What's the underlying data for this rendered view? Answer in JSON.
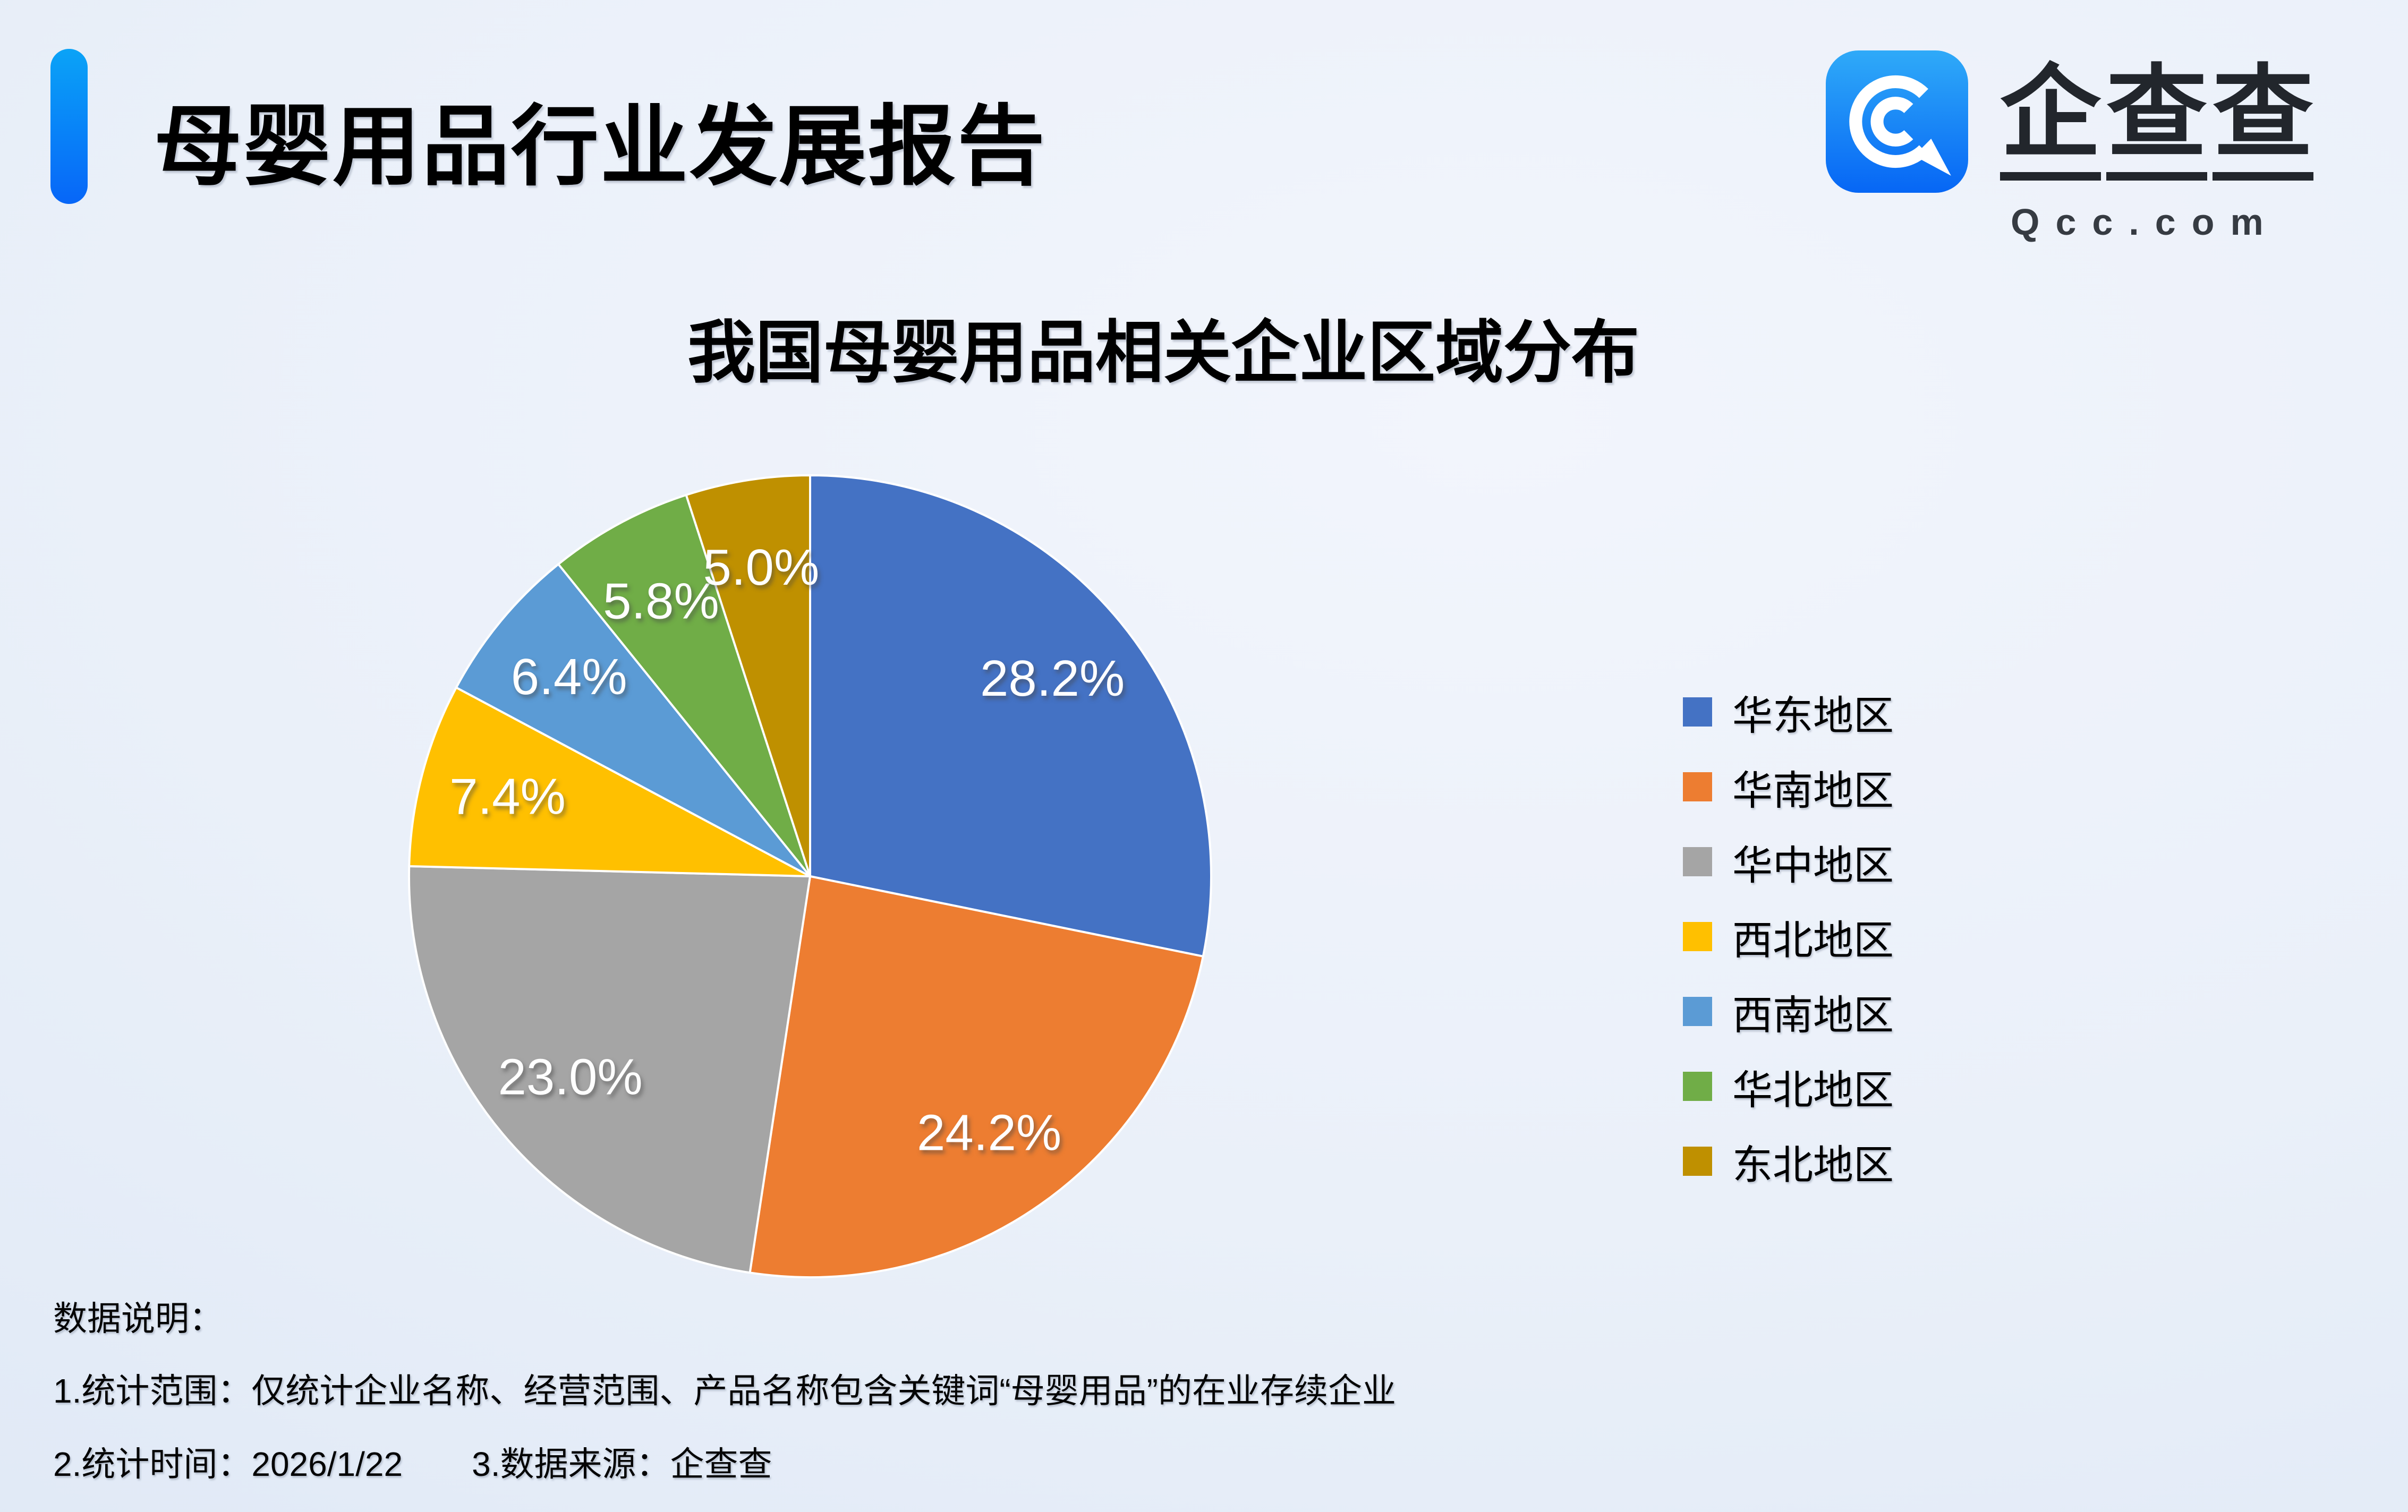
{
  "page": {
    "title": "母婴用品行业发展报告",
    "brand": {
      "name": "企查查",
      "domain": "Qcc.com",
      "icon": "qcc-logo-icon",
      "icon_color_top": "#2FAAF8",
      "icon_color_bottom": "#0666F5"
    },
    "accent_bar": {
      "color_top": "#0AA3F7",
      "color_bottom": "#0766F8"
    }
  },
  "chart_data": {
    "type": "pie",
    "title": "我国母婴用品相关企业区域分布",
    "unit": "percent",
    "direction": "clockwise",
    "start_angle_deg": 0,
    "legend_position": "right",
    "grid": false,
    "series": [
      {
        "name": "华东地区",
        "value": 28.2,
        "label": "28.2%",
        "color": "#4472C4"
      },
      {
        "name": "华南地区",
        "value": 24.2,
        "label": "24.2%",
        "color": "#ED7D31"
      },
      {
        "name": "华中地区",
        "value": 23.0,
        "label": "23.0%",
        "color": "#A5A5A5"
      },
      {
        "name": "西北地区",
        "value": 7.4,
        "label": "7.4%",
        "color": "#FFC000"
      },
      {
        "name": "西南地区",
        "value": 6.4,
        "label": "6.4%",
        "color": "#5B9BD5"
      },
      {
        "name": "华北地区",
        "value": 5.8,
        "label": "5.8%",
        "color": "#70AD47"
      },
      {
        "name": "东北地区",
        "value": 5.0,
        "label": "5.0%",
        "color": "#BF9000"
      }
    ]
  },
  "footer": {
    "heading": "数据说明：",
    "note1": "1.统计范围：仅统计企业名称、经营范围、产品名称包含关键词“母婴用品”的在业存续企业",
    "note2a": "2.统计时间：2026/1/22",
    "note2b": "3.数据来源：企查查"
  }
}
